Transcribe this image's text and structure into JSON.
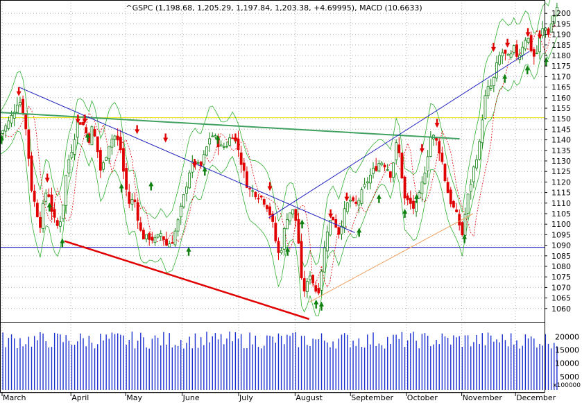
{
  "chart_data": {
    "type": "candlestick",
    "title": "^GSPC (1,198.68, 1,205.29, 1,197.84, 1,203.38, +4.69995), MACD (10.6633)",
    "price_axis": {
      "min": 1055,
      "max": 1205,
      "step": 5,
      "labels": [
        "1060",
        "1065",
        "1070",
        "1075",
        "1080",
        "1085",
        "1090",
        "1095",
        "1100",
        "1105",
        "1110",
        "1115",
        "1120",
        "1125",
        "1130",
        "1135",
        "1140",
        "1145",
        "1150",
        "1155",
        "1160",
        "1165",
        "1170",
        "1175",
        "1180",
        "1185",
        "1190",
        "1195",
        "1200"
      ]
    },
    "volume_axis": {
      "labels": [
        "5000",
        "10000",
        "15000",
        "20000"
      ],
      "multiplier_label": "x100000",
      "max": 23000
    },
    "months": [
      "March",
      "April",
      "May",
      "June",
      "July",
      "August",
      "September",
      "October",
      "November",
      "December"
    ],
    "horizontal_lines": [
      {
        "name": "yellow-resistance",
        "price": 1150.5,
        "color": "#e8e000"
      },
      {
        "name": "blue-support",
        "price": 1089,
        "color": "#2020c0"
      }
    ],
    "trend_lines": [
      {
        "name": "green-trend",
        "color": "#40a060",
        "from": [
          0,
          1153
        ],
        "to": [
          0.855,
          1140.5
        ]
      },
      {
        "name": "red-channel-bottom",
        "color": "#e00000",
        "from": [
          0.12,
          1092
        ],
        "to": [
          0.575,
          1055
        ]
      },
      {
        "name": "blue-downtrend",
        "color": "#2020c0",
        "from": [
          0.035,
          1165
        ],
        "to": [
          0.66,
          1096
        ]
      },
      {
        "name": "blue-uptrend",
        "color": "#2020c0",
        "from": [
          0.5,
          1103
        ],
        "to": [
          0.985,
          1182
        ]
      },
      {
        "name": "orange-uptrend",
        "color": "#f0a060",
        "from": [
          0.575,
          1063
        ],
        "to": [
          0.88,
          1105
        ]
      }
    ],
    "close_path": [
      [
        0.0,
        1143
      ],
      [
        0.01,
        1146
      ],
      [
        0.02,
        1150
      ],
      [
        0.035,
        1160
      ],
      [
        0.045,
        1152
      ],
      [
        0.052,
        1136
      ],
      [
        0.058,
        1118
      ],
      [
        0.066,
        1108
      ],
      [
        0.075,
        1100
      ],
      [
        0.082,
        1111
      ],
      [
        0.088,
        1118
      ],
      [
        0.095,
        1108
      ],
      [
        0.105,
        1098
      ],
      [
        0.115,
        1104
      ],
      [
        0.125,
        1128
      ],
      [
        0.135,
        1137
      ],
      [
        0.145,
        1150
      ],
      [
        0.155,
        1147
      ],
      [
        0.165,
        1140
      ],
      [
        0.172,
        1146
      ],
      [
        0.18,
        1137
      ],
      [
        0.188,
        1124
      ],
      [
        0.195,
        1131
      ],
      [
        0.205,
        1140
      ],
      [
        0.215,
        1142
      ],
      [
        0.225,
        1135
      ],
      [
        0.232,
        1120
      ],
      [
        0.24,
        1110
      ],
      [
        0.25,
        1112
      ],
      [
        0.262,
        1096
      ],
      [
        0.27,
        1093
      ],
      [
        0.278,
        1094
      ],
      [
        0.29,
        1092
      ],
      [
        0.3,
        1096
      ],
      [
        0.31,
        1090
      ],
      [
        0.32,
        1092
      ],
      [
        0.33,
        1100
      ],
      [
        0.342,
        1113
      ],
      [
        0.352,
        1125
      ],
      [
        0.362,
        1130
      ],
      [
        0.372,
        1126
      ],
      [
        0.382,
        1134
      ],
      [
        0.392,
        1143
      ],
      [
        0.402,
        1140
      ],
      [
        0.412,
        1136
      ],
      [
        0.422,
        1138
      ],
      [
        0.432,
        1143
      ],
      [
        0.442,
        1137
      ],
      [
        0.45,
        1128
      ],
      [
        0.458,
        1120
      ],
      [
        0.465,
        1116
      ],
      [
        0.475,
        1115
      ],
      [
        0.485,
        1113
      ],
      [
        0.495,
        1110
      ],
      [
        0.505,
        1103
      ],
      [
        0.512,
        1093
      ],
      [
        0.518,
        1086
      ],
      [
        0.525,
        1090
      ],
      [
        0.532,
        1103
      ],
      [
        0.54,
        1106
      ],
      [
        0.548,
        1106
      ],
      [
        0.556,
        1090
      ],
      [
        0.562,
        1068
      ],
      [
        0.57,
        1070
      ],
      [
        0.578,
        1078
      ],
      [
        0.585,
        1069
      ],
      [
        0.592,
        1068
      ],
      [
        0.6,
        1082
      ],
      [
        0.61,
        1100
      ],
      [
        0.62,
        1103
      ],
      [
        0.63,
        1096
      ],
      [
        0.64,
        1105
      ],
      [
        0.65,
        1112
      ],
      [
        0.66,
        1108
      ],
      [
        0.672,
        1114
      ],
      [
        0.684,
        1121
      ],
      [
        0.696,
        1126
      ],
      [
        0.708,
        1130
      ],
      [
        0.718,
        1128
      ],
      [
        0.728,
        1123
      ],
      [
        0.736,
        1138
      ],
      [
        0.744,
        1132
      ],
      [
        0.752,
        1112
      ],
      [
        0.762,
        1110
      ],
      [
        0.772,
        1107
      ],
      [
        0.782,
        1115
      ],
      [
        0.792,
        1128
      ],
      [
        0.802,
        1143
      ],
      [
        0.812,
        1139
      ],
      [
        0.82,
        1133
      ],
      [
        0.83,
        1118
      ],
      [
        0.838,
        1111
      ],
      [
        0.846,
        1106
      ],
      [
        0.852,
        1102
      ],
      [
        0.86,
        1095
      ],
      [
        0.868,
        1110
      ],
      [
        0.876,
        1120
      ],
      [
        0.884,
        1130
      ],
      [
        0.892,
        1138
      ],
      [
        0.9,
        1158
      ],
      [
        0.908,
        1164
      ],
      [
        0.916,
        1166
      ],
      [
        0.924,
        1175
      ],
      [
        0.932,
        1182
      ],
      [
        0.94,
        1180
      ],
      [
        0.948,
        1178
      ],
      [
        0.956,
        1183
      ],
      [
        0.964,
        1179
      ],
      [
        0.972,
        1185
      ],
      [
        0.98,
        1190
      ],
      [
        0.988,
        1183
      ],
      [
        0.996,
        1178
      ],
      [
        1.004,
        1188
      ],
      [
        1.012,
        1194
      ],
      [
        1.02,
        1191
      ],
      [
        1.028,
        1197
      ],
      [
        1.036,
        1203
      ]
    ],
    "sell_signals": [
      {
        "x": 0.035,
        "price": 1163
      },
      {
        "x": 0.088,
        "price": 1122
      },
      {
        "x": 0.145,
        "price": 1150
      },
      {
        "x": 0.158,
        "price": 1150
      },
      {
        "x": 0.255,
        "price": 1145
      },
      {
        "x": 0.308,
        "price": 1141
      },
      {
        "x": 0.362,
        "price": 1129
      },
      {
        "x": 0.438,
        "price": 1141
      },
      {
        "x": 0.502,
        "price": 1118
      },
      {
        "x": 0.615,
        "price": 1105
      },
      {
        "x": 0.645,
        "price": 1113
      },
      {
        "x": 0.785,
        "price": 1136
      },
      {
        "x": 0.813,
        "price": 1148
      },
      {
        "x": 0.918,
        "price": 1184
      },
      {
        "x": 0.944,
        "price": 1186
      },
      {
        "x": 0.982,
        "price": 1191
      },
      {
        "x": 1.004,
        "price": 1190
      }
    ],
    "buy_signals": [
      {
        "x": 0.003,
        "price": 1140
      },
      {
        "x": 0.092,
        "price": 1108
      },
      {
        "x": 0.116,
        "price": 1091
      },
      {
        "x": 0.163,
        "price": 1141
      },
      {
        "x": 0.226,
        "price": 1117
      },
      {
        "x": 0.281,
        "price": 1118
      },
      {
        "x": 0.351,
        "price": 1087
      },
      {
        "x": 0.381,
        "price": 1125
      },
      {
        "x": 0.405,
        "price": 1140
      },
      {
        "x": 0.535,
        "price": 1087
      },
      {
        "x": 0.562,
        "price": 1100
      },
      {
        "x": 0.588,
        "price": 1062
      },
      {
        "x": 0.598,
        "price": 1061
      },
      {
        "x": 0.668,
        "price": 1096
      },
      {
        "x": 0.705,
        "price": 1112
      },
      {
        "x": 0.753,
        "price": 1105
      },
      {
        "x": 0.775,
        "price": 1112
      },
      {
        "x": 0.864,
        "price": 1093
      },
      {
        "x": 0.939,
        "price": 1169
      },
      {
        "x": 0.981,
        "price": 1173
      },
      {
        "x": 1.016,
        "price": 1177
      }
    ]
  }
}
